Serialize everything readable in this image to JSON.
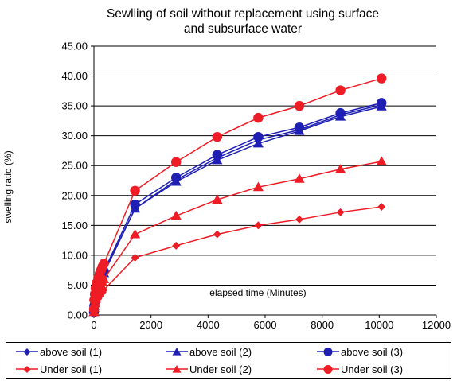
{
  "chart_data": {
    "type": "line",
    "title": "Sewlling of soil without  replacement using surface and subsurface water",
    "title_lines": [
      "Sewlling of soil without  replacement using surface",
      "and subsurface water"
    ],
    "xlabel": "elapsed time (Minutes)",
    "ylabel": "swelling ratio (%)",
    "xlim": [
      0,
      12000
    ],
    "ylim": [
      0,
      45
    ],
    "x_ticks": [
      "0",
      "2000",
      "4000",
      "6000",
      "8000",
      "10000",
      "12000"
    ],
    "y_ticks": [
      "0.00",
      "5.00",
      "10.00",
      "15.00",
      "20.00",
      "25.00",
      "30.00",
      "35.00",
      "40.00",
      "45.00"
    ],
    "grid": "horizontal",
    "legend_position": "bottom",
    "series": [
      {
        "name": "above soil (1)",
        "color": "#1f1fb4",
        "marker": "diamond",
        "points": [
          [
            0,
            0.5
          ],
          [
            10,
            1.5
          ],
          [
            30,
            2.5
          ],
          [
            60,
            3.2
          ],
          [
            100,
            4.0
          ],
          [
            150,
            4.8
          ],
          [
            200,
            5.5
          ],
          [
            250,
            6.0
          ],
          [
            300,
            6.5
          ],
          [
            350,
            7.0
          ],
          [
            1440,
            17.8
          ],
          [
            2880,
            22.6
          ],
          [
            4320,
            26.3
          ],
          [
            5760,
            29.3
          ],
          [
            7200,
            31.0
          ],
          [
            8640,
            33.5
          ],
          [
            10080,
            35.2
          ]
        ]
      },
      {
        "name": "above soil (2)",
        "color": "#1f1fb4",
        "marker": "triangle",
        "points": [
          [
            0,
            0.5
          ],
          [
            10,
            1.5
          ],
          [
            30,
            2.5
          ],
          [
            60,
            3.2
          ],
          [
            100,
            4.0
          ],
          [
            150,
            4.8
          ],
          [
            200,
            5.5
          ],
          [
            250,
            6.0
          ],
          [
            300,
            6.5
          ],
          [
            350,
            7.0
          ],
          [
            1440,
            17.8
          ],
          [
            2880,
            22.3
          ],
          [
            4320,
            25.9
          ],
          [
            5760,
            28.7
          ],
          [
            7200,
            30.8
          ],
          [
            8640,
            33.2
          ],
          [
            10080,
            34.9
          ]
        ]
      },
      {
        "name": "above soil (3)",
        "color": "#1f1fb4",
        "marker": "circle",
        "points": [
          [
            0,
            0.5
          ],
          [
            10,
            1.5
          ],
          [
            30,
            2.5
          ],
          [
            60,
            3.3
          ],
          [
            100,
            4.2
          ],
          [
            150,
            5.0
          ],
          [
            200,
            5.8
          ],
          [
            250,
            6.3
          ],
          [
            300,
            6.9
          ],
          [
            350,
            7.3
          ],
          [
            1440,
            18.5
          ],
          [
            2880,
            23.0
          ],
          [
            4320,
            26.8
          ],
          [
            5760,
            29.8
          ],
          [
            7200,
            31.4
          ],
          [
            8640,
            33.8
          ],
          [
            10080,
            35.5
          ]
        ]
      },
      {
        "name": "Under soil (1)",
        "color": "#ee1c25",
        "marker": "diamond",
        "points": [
          [
            0,
            0.3
          ],
          [
            10,
            0.8
          ],
          [
            30,
            1.3
          ],
          [
            60,
            1.8
          ],
          [
            100,
            2.2
          ],
          [
            150,
            2.7
          ],
          [
            200,
            3.1
          ],
          [
            250,
            3.5
          ],
          [
            300,
            3.8
          ],
          [
            350,
            4.2
          ],
          [
            1440,
            9.6
          ],
          [
            2880,
            11.6
          ],
          [
            4320,
            13.5
          ],
          [
            5760,
            15.0
          ],
          [
            7200,
            16.0
          ],
          [
            8640,
            17.2
          ],
          [
            10080,
            18.1
          ]
        ]
      },
      {
        "name": "Under soil (2)",
        "color": "#ee1c25",
        "marker": "triangle",
        "points": [
          [
            0,
            0.5
          ],
          [
            10,
            1.2
          ],
          [
            30,
            2.0
          ],
          [
            60,
            2.7
          ],
          [
            100,
            3.3
          ],
          [
            150,
            3.9
          ],
          [
            200,
            4.5
          ],
          [
            250,
            5.0
          ],
          [
            300,
            5.5
          ],
          [
            350,
            6.0
          ],
          [
            1440,
            13.5
          ],
          [
            2880,
            16.6
          ],
          [
            4320,
            19.3
          ],
          [
            5760,
            21.4
          ],
          [
            7200,
            22.8
          ],
          [
            8640,
            24.4
          ],
          [
            10080,
            25.7
          ]
        ]
      },
      {
        "name": "Under soil (3)",
        "color": "#ee1c25",
        "marker": "circle",
        "points": [
          [
            0,
            1.0
          ],
          [
            10,
            2.5
          ],
          [
            30,
            3.5
          ],
          [
            60,
            4.5
          ],
          [
            100,
            5.4
          ],
          [
            150,
            6.2
          ],
          [
            200,
            6.9
          ],
          [
            250,
            7.5
          ],
          [
            300,
            8.1
          ],
          [
            350,
            8.6
          ],
          [
            1440,
            20.8
          ],
          [
            2880,
            25.6
          ],
          [
            4320,
            29.8
          ],
          [
            5760,
            33.0
          ],
          [
            7200,
            35.0
          ],
          [
            8640,
            37.6
          ],
          [
            10080,
            39.6
          ]
        ]
      }
    ]
  }
}
